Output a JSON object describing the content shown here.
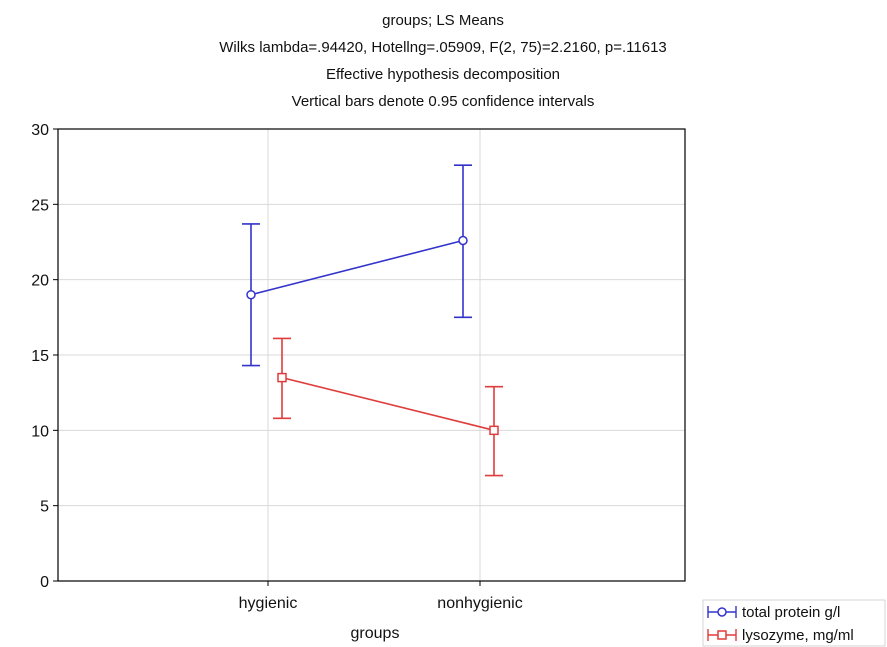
{
  "chart_data": {
    "type": "line",
    "title_lines": [
      "groups; LS Means",
      "Wilks lambda=.94420,  Hotellng=.05909, F(2, 75)=2.2160, p=.11613",
      "Effective hypothesis decomposition",
      "Vertical bars denote 0.95 confidence intervals"
    ],
    "xlabel": "groups",
    "ylabel": "",
    "categories": [
      "hygienic",
      "nonhygienic"
    ],
    "ylim": [
      0,
      30
    ],
    "yticks": [
      0,
      5,
      10,
      15,
      20,
      25,
      30
    ],
    "grid": true,
    "legend_position": "bottom-right",
    "series": [
      {
        "name": "total protein g/l",
        "color": "#3333cc",
        "marker": "circle",
        "values": [
          19.0,
          22.6
        ],
        "ci_low": [
          14.3,
          17.5
        ],
        "ci_high": [
          23.7,
          27.6
        ]
      },
      {
        "name": "lysozyme, mg/ml",
        "color": "#e03c3c",
        "marker": "square",
        "values": [
          13.5,
          10.0
        ],
        "ci_low": [
          10.8,
          7.0
        ],
        "ci_high": [
          16.1,
          12.9
        ]
      }
    ]
  }
}
